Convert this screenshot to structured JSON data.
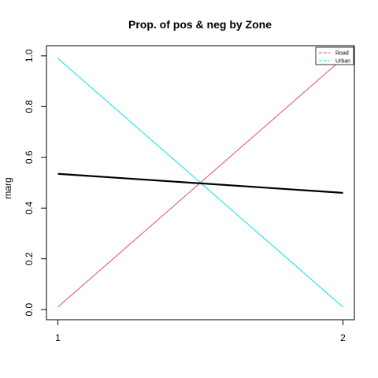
{
  "chart_data": {
    "type": "line",
    "title": "Prop. of pos & neg by Zone",
    "xlabel": "",
    "ylabel": "marg",
    "x": [
      1,
      2
    ],
    "xticks": [
      "1",
      "2"
    ],
    "yticks": [
      "0.0",
      "0.2",
      "0.4",
      "0.6",
      "0.8",
      "1.0"
    ],
    "xlim": [
      0.96,
      2.04
    ],
    "ylim": [
      -0.04,
      1.04
    ],
    "grid": false,
    "legend_position": "top-right",
    "series": [
      {
        "name": "Road",
        "values": [
          0.01,
          0.99
        ],
        "color": "#DF536B",
        "line_style": "dashed"
      },
      {
        "name": "Urban",
        "values": [
          0.99,
          0.01
        ],
        "color": "#00E5EE",
        "line_style": "dashed"
      },
      {
        "name": "",
        "values": [
          0.535,
          0.46
        ],
        "color": "#000000",
        "line_style": "solid",
        "thick": true
      }
    ]
  }
}
